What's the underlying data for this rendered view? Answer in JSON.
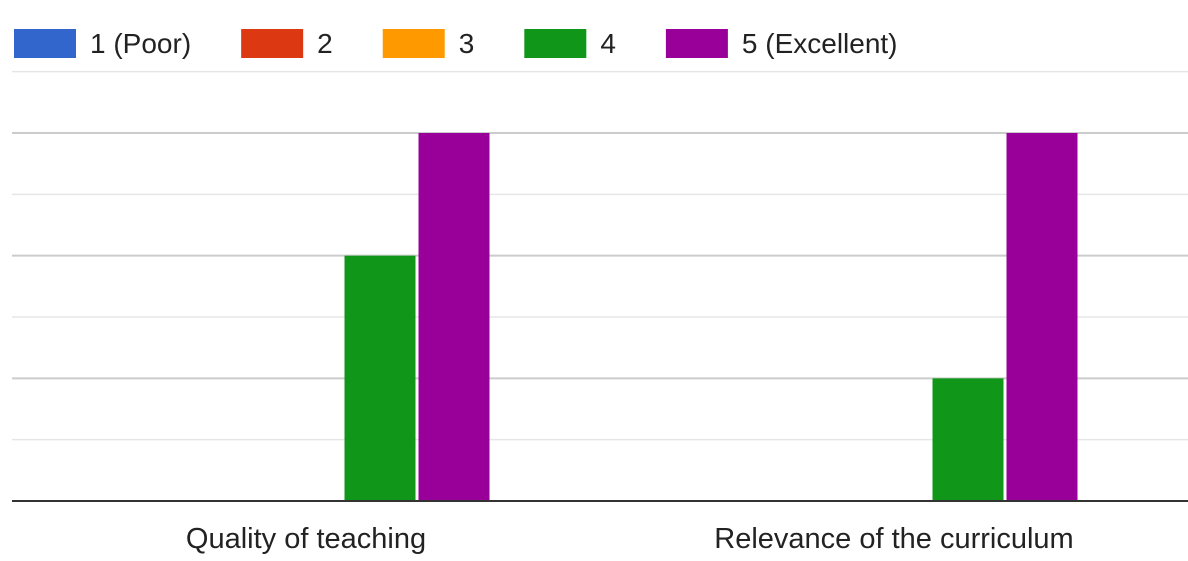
{
  "chart_data": {
    "type": "bar",
    "title": "",
    "xlabel": "",
    "ylabel": "",
    "categories": [
      "Quality of teaching",
      "Relevance of the curriculum"
    ],
    "series": [
      {
        "name": "1 (Poor)",
        "color": "#3366cc",
        "values": [
          0,
          0
        ]
      },
      {
        "name": "2",
        "color": "#dc3912",
        "values": [
          0,
          0
        ]
      },
      {
        "name": "3",
        "color": "#ff9900",
        "values": [
          0,
          0
        ]
      },
      {
        "name": "4",
        "color": "#109618",
        "values": [
          4,
          2
        ]
      },
      {
        "name": "5 (Excellent)",
        "color": "#990099",
        "values": [
          6,
          6
        ]
      }
    ],
    "ylim": [
      0,
      6
    ],
    "y_ticks_labeled": false,
    "grid": true,
    "legend": "top-left"
  }
}
